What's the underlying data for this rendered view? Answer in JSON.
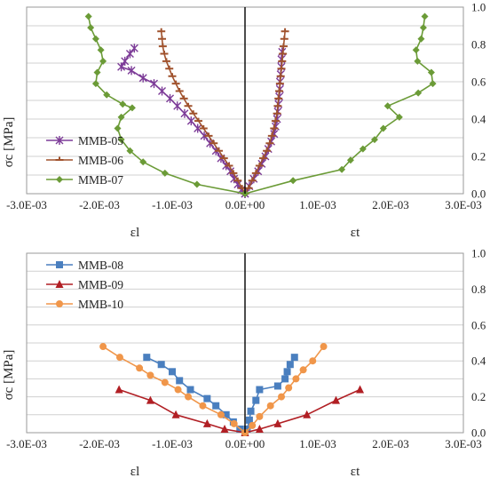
{
  "chart_data": [
    {
      "type": "scatter",
      "title": "",
      "xlabel_left": "εl",
      "xlabel_right": "εt",
      "ylabel": "σc  [MPa]",
      "xlim": [
        -0.003,
        0.003
      ],
      "ylim": [
        0,
        1.0
      ],
      "x_ticks": [
        -0.003,
        -0.002,
        -0.001,
        0.0,
        0.001,
        0.002,
        0.003
      ],
      "x_tick_labels": [
        "-3.0E-03",
        "-2.0E-03",
        "-1.0E-03",
        "0.0E+00",
        "1.0E-03",
        "2.0E-03",
        "3.0E-03"
      ],
      "y_ticks": [
        0,
        0.2,
        0.4,
        0.6,
        0.8,
        1.0
      ],
      "y_tick_labels": [
        "0.0",
        "0.2",
        "0.4",
        "0.6",
        "0.8",
        "1.0"
      ],
      "grid": "horizontal",
      "legend_position": "left-bottom",
      "series": [
        {
          "name": "MMB-05",
          "color": "#7d3c98",
          "marker": "star",
          "lateral": [
            [
              0,
              0
            ],
            [
              -5e-05,
              0.02
            ],
            [
              -0.0001,
              0.05
            ],
            [
              -0.00015,
              0.08
            ],
            [
              -0.0002,
              0.12
            ],
            [
              -0.00026,
              0.15
            ],
            [
              -0.00033,
              0.19
            ],
            [
              -0.0004,
              0.23
            ],
            [
              -0.00048,
              0.27
            ],
            [
              -0.00056,
              0.31
            ],
            [
              -0.00065,
              0.35
            ],
            [
              -0.00074,
              0.39
            ],
            [
              -0.00083,
              0.43
            ],
            [
              -0.00093,
              0.47
            ],
            [
              -0.00103,
              0.51
            ],
            [
              -0.00114,
              0.55
            ],
            [
              -0.00125,
              0.59
            ],
            [
              -0.0014,
              0.62
            ],
            [
              -0.00156,
              0.66
            ],
            [
              -0.0017,
              0.68
            ],
            [
              -0.00165,
              0.71
            ],
            [
              -0.00158,
              0.75
            ],
            [
              -0.00152,
              0.78
            ]
          ],
          "transverse": [
            [
              0,
              0
            ],
            [
              6e-05,
              0.04
            ],
            [
              0.00012,
              0.08
            ],
            [
              0.00018,
              0.12
            ],
            [
              0.00023,
              0.16
            ],
            [
              0.00028,
              0.2
            ],
            [
              0.00032,
              0.24
            ],
            [
              0.00036,
              0.28
            ],
            [
              0.0004,
              0.32
            ],
            [
              0.00042,
              0.36
            ],
            [
              0.00044,
              0.4
            ],
            [
              0.00045,
              0.44
            ],
            [
              0.00046,
              0.48
            ],
            [
              0.00047,
              0.52
            ],
            [
              0.00048,
              0.56
            ],
            [
              0.00048,
              0.6
            ],
            [
              0.00049,
              0.64
            ],
            [
              0.0005,
              0.68
            ],
            [
              0.0005,
              0.72
            ],
            [
              0.00051,
              0.76
            ]
          ]
        },
        {
          "name": "MMB-06",
          "color": "#a0522d",
          "marker": "dash",
          "lateral": [
            [
              0,
              0
            ],
            [
              -4e-05,
              0.03
            ],
            [
              -0.0001,
              0.07
            ],
            [
              -0.00016,
              0.11
            ],
            [
              -0.00022,
              0.15
            ],
            [
              -0.00029,
              0.19
            ],
            [
              -0.00036,
              0.23
            ],
            [
              -0.00043,
              0.27
            ],
            [
              -0.0005,
              0.31
            ],
            [
              -0.00057,
              0.35
            ],
            [
              -0.00064,
              0.39
            ],
            [
              -0.00071,
              0.43
            ],
            [
              -0.00078,
              0.47
            ],
            [
              -0.00084,
              0.51
            ],
            [
              -0.0009,
              0.55
            ],
            [
              -0.00095,
              0.59
            ],
            [
              -0.001,
              0.63
            ],
            [
              -0.00104,
              0.67
            ],
            [
              -0.00108,
              0.71
            ],
            [
              -0.00111,
              0.75
            ],
            [
              -0.00113,
              0.79
            ],
            [
              -0.00114,
              0.83
            ],
            [
              -0.00115,
              0.87
            ]
          ],
          "transverse": [
            [
              0,
              0
            ],
            [
              5e-05,
              0.03
            ],
            [
              0.0001,
              0.07
            ],
            [
              0.00015,
              0.11
            ],
            [
              0.0002,
              0.15
            ],
            [
              0.00025,
              0.19
            ],
            [
              0.0003,
              0.23
            ],
            [
              0.00034,
              0.27
            ],
            [
              0.00037,
              0.31
            ],
            [
              0.0004,
              0.35
            ],
            [
              0.00042,
              0.39
            ],
            [
              0.00044,
              0.43
            ],
            [
              0.00045,
              0.47
            ],
            [
              0.00046,
              0.51
            ],
            [
              0.00047,
              0.55
            ],
            [
              0.00048,
              0.59
            ],
            [
              0.00049,
              0.63
            ],
            [
              0.0005,
              0.67
            ],
            [
              0.00051,
              0.71
            ],
            [
              0.00052,
              0.75
            ],
            [
              0.00053,
              0.79
            ],
            [
              0.00054,
              0.83
            ],
            [
              0.00055,
              0.87
            ]
          ]
        },
        {
          "name": "MMB-07",
          "color": "#6b9b37",
          "marker": "diamond",
          "lateral": [
            [
              0,
              0
            ],
            [
              -0.00066,
              0.05
            ],
            [
              -0.0011,
              0.11
            ],
            [
              -0.0014,
              0.17
            ],
            [
              -0.00158,
              0.23
            ],
            [
              -0.0017,
              0.29
            ],
            [
              -0.00175,
              0.35
            ],
            [
              -0.0017,
              0.41
            ],
            [
              -0.00155,
              0.46
            ],
            [
              -0.00168,
              0.48
            ],
            [
              -0.0019,
              0.53
            ],
            [
              -0.00205,
              0.59
            ],
            [
              -0.00203,
              0.65
            ],
            [
              -0.00195,
              0.71
            ],
            [
              -0.00198,
              0.77
            ],
            [
              -0.00205,
              0.83
            ],
            [
              -0.00212,
              0.89
            ],
            [
              -0.00215,
              0.95
            ]
          ],
          "transverse": [
            [
              0,
              0
            ],
            [
              0.00066,
              0.07
            ],
            [
              0.00133,
              0.13
            ],
            [
              0.00145,
              0.18
            ],
            [
              0.00162,
              0.24
            ],
            [
              0.00178,
              0.29
            ],
            [
              0.0019,
              0.35
            ],
            [
              0.00212,
              0.41
            ],
            [
              0.00196,
              0.47
            ],
            [
              0.00238,
              0.54
            ],
            [
              0.00258,
              0.59
            ],
            [
              0.00256,
              0.65
            ],
            [
              0.00237,
              0.71
            ],
            [
              0.00235,
              0.77
            ],
            [
              0.00242,
              0.83
            ],
            [
              0.00245,
              0.89
            ],
            [
              0.00247,
              0.95
            ]
          ]
        }
      ]
    },
    {
      "type": "scatter",
      "title": "",
      "xlabel_left": "εl",
      "xlabel_right": "εt",
      "ylabel": "σc  [MPa]",
      "xlim": [
        -0.003,
        0.003
      ],
      "ylim": [
        0,
        1.0
      ],
      "x_ticks": [
        -0.003,
        -0.002,
        -0.001,
        0.0,
        0.001,
        0.002,
        0.003
      ],
      "x_tick_labels": [
        "-3.0E-03",
        "-2.0E-03",
        "-1.0E-03",
        "0.0E+00",
        "1.0E-03",
        "2.0E-03",
        "3.0E-03"
      ],
      "y_ticks": [
        0,
        0.2,
        0.4,
        0.6,
        0.8,
        1.0
      ],
      "y_tick_labels": [
        "0.0",
        "0.2",
        "0.4",
        "0.6",
        "0.8",
        "1.0"
      ],
      "grid": "horizontal",
      "legend_position": "top-left",
      "series": [
        {
          "name": "MMB-08",
          "color": "#4a7fbf",
          "marker": "square",
          "lateral": [
            [
              0,
              0
            ],
            [
              -7e-05,
              0.02
            ],
            [
              -0.00016,
              0.06
            ],
            [
              -0.00026,
              0.1
            ],
            [
              -0.0004,
              0.15
            ],
            [
              -0.00052,
              0.19
            ],
            [
              -0.00075,
              0.24
            ],
            [
              -0.0009,
              0.29
            ],
            [
              -0.001,
              0.34
            ],
            [
              -0.00115,
              0.38
            ],
            [
              -0.00135,
              0.42
            ]
          ],
          "transverse": [
            [
              0,
              0
            ],
            [
              3e-05,
              0.02
            ],
            [
              6e-05,
              0.07
            ],
            [
              8e-05,
              0.12
            ],
            [
              0.00015,
              0.18
            ],
            [
              0.0002,
              0.24
            ],
            [
              0.00045,
              0.26
            ],
            [
              0.00055,
              0.3
            ],
            [
              0.00058,
              0.34
            ],
            [
              0.00062,
              0.38
            ],
            [
              0.00068,
              0.42
            ]
          ]
        },
        {
          "name": "MMB-09",
          "color": "#b11f24",
          "marker": "triangle",
          "lateral": [
            [
              0,
              0
            ],
            [
              -0.00028,
              0.02
            ],
            [
              -0.00052,
              0.05
            ],
            [
              -0.00095,
              0.1
            ],
            [
              -0.0013,
              0.18
            ],
            [
              -0.00173,
              0.24
            ]
          ],
          "transverse": [
            [
              0,
              0
            ],
            [
              0.0002,
              0.02
            ],
            [
              0.00045,
              0.05
            ],
            [
              0.00085,
              0.1
            ],
            [
              0.00125,
              0.18
            ],
            [
              0.00158,
              0.24
            ]
          ]
        },
        {
          "name": "MMB-10",
          "color": "#f0964a",
          "marker": "circle",
          "lateral": [
            [
              0,
              0
            ],
            [
              -0.00015,
              0.05
            ],
            [
              -0.00033,
              0.1
            ],
            [
              -0.00058,
              0.15
            ],
            [
              -0.00078,
              0.2
            ],
            [
              -0.00092,
              0.24
            ],
            [
              -0.0011,
              0.28
            ],
            [
              -0.0013,
              0.32
            ],
            [
              -0.00145,
              0.36
            ],
            [
              -0.00172,
              0.42
            ],
            [
              -0.00195,
              0.48
            ]
          ],
          "transverse": [
            [
              0,
              0
            ],
            [
              0.0001,
              0.04
            ],
            [
              0.0002,
              0.09
            ],
            [
              0.00035,
              0.15
            ],
            [
              0.0005,
              0.2
            ],
            [
              0.0006,
              0.25
            ],
            [
              0.0007,
              0.3
            ],
            [
              0.0008,
              0.35
            ],
            [
              0.00093,
              0.4
            ],
            [
              0.00108,
              0.48
            ]
          ]
        }
      ]
    }
  ]
}
